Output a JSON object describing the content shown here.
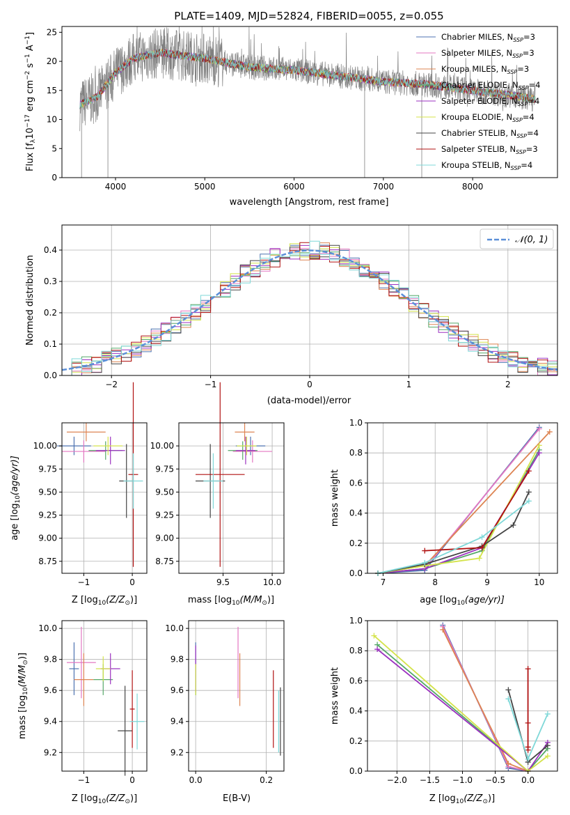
{
  "chart_data": [
    {
      "type": "line",
      "title": "PLATE=1409, MJD=52824, FIBERID=0055, z=0.055",
      "xlabel": "wavelength [Angstrom, rest frame]",
      "ylabel_main": "Flux [f",
      "ylabel_sub": "λ",
      "ylabel_rest": "10",
      "ylabel_units": " erg cm",
      "ylabel_s": " s",
      "ylabel_a": " A",
      "ylabel_exp17": "−17",
      "ylabel_exp2": "−2",
      "ylabel_exp1": "−1",
      "xlim": [
        3400,
        8950
      ],
      "ylim": [
        0,
        26
      ],
      "xticks": [
        4000,
        5000,
        6000,
        7000,
        8000
      ],
      "yticks": [
        0,
        5,
        10,
        15,
        20,
        25
      ],
      "legend": [
        {
          "prefix": "Chabrier MILES, N",
          "sub": "SSP",
          "suffix": "=3",
          "color": "#4c72b0"
        },
        {
          "prefix": "Salpeter MILES, N",
          "sub": "SSP",
          "suffix": "=3",
          "color": "#e377c2"
        },
        {
          "prefix": "Kroupa MILES, N",
          "sub": "SSP",
          "suffix": "=3",
          "color": "#dd8452"
        },
        {
          "prefix": "Chabrier ELODIE, N",
          "sub": "SSP",
          "suffix": "=4",
          "color": "#55a868"
        },
        {
          "prefix": "Salpeter ELODIE, N",
          "sub": "SSP",
          "suffix": "=4",
          "color": "#9b30c0"
        },
        {
          "prefix": "Kroupa ELODIE, N",
          "sub": "SSP",
          "suffix": "=4",
          "color": "#d4e34a"
        },
        {
          "prefix": "Chabrier STELIB, N",
          "sub": "SSP",
          "suffix": "=4",
          "color": "#444444"
        },
        {
          "prefix": "Salpeter STELIB, N",
          "sub": "SSP",
          "suffix": "=3",
          "color": "#b01010"
        },
        {
          "prefix": "Kroupa STELIB, N",
          "sub": "SSP",
          "suffix": "=4",
          "color": "#7fd8d8"
        }
      ],
      "data_trend": [
        [
          3600,
          12.5
        ],
        [
          3800,
          14
        ],
        [
          4000,
          18
        ],
        [
          4200,
          20.5
        ],
        [
          4500,
          21.5
        ],
        [
          5000,
          20.5
        ],
        [
          5500,
          19
        ],
        [
          6000,
          18.5
        ],
        [
          6500,
          17.5
        ],
        [
          7000,
          16.5
        ],
        [
          7500,
          16
        ],
        [
          8000,
          15
        ],
        [
          8500,
          14
        ],
        [
          8700,
          13.5
        ]
      ]
    },
    {
      "type": "bar",
      "xlabel": "(data-model)/error",
      "ylabel": "Normed distribution",
      "xlim": [
        -2.5,
        2.5
      ],
      "ylim": [
        0,
        0.48
      ],
      "xticks": [
        -2,
        -1,
        0,
        1,
        2
      ],
      "yticks": [
        0.0,
        0.1,
        0.2,
        0.3,
        0.4
      ],
      "legend_label": "𝒩(0, 1)",
      "curve": "normal(0,1)"
    },
    {
      "type": "scatter",
      "xlabel_main": "Z [log",
      "xlabel_sub": "10",
      "xlabel_rest": "(Z/Z",
      "xlabel_sun": "⊙",
      "xlabel_end": ")]",
      "ylabel_main": "age  [log",
      "ylabel_sub": "10",
      "ylabel_rest": "(age/yr)]",
      "xlim": [
        -1.45,
        0.3
      ],
      "ylim": [
        8.62,
        10.25
      ],
      "xticks": [
        -1,
        0
      ],
      "yticks": [
        8.75,
        9.0,
        9.25,
        9.5,
        9.75,
        10.0
      ],
      "points": [
        {
          "x": -1.2,
          "y": 10.0,
          "xerr": 0.35,
          "yerr": 0.1
        },
        {
          "x": -1.0,
          "y": 9.94,
          "xerr": 0.45,
          "yerr": 0.12
        },
        {
          "x": -0.95,
          "y": 10.15,
          "xerr": 0.4,
          "yerr": 0.1
        },
        {
          "x": -0.55,
          "y": 9.95,
          "xerr": 0.35,
          "yerr": 0.1
        },
        {
          "x": -0.45,
          "y": 9.95,
          "xerr": 0.3,
          "yerr": 0.15
        },
        {
          "x": -0.5,
          "y": 10.0,
          "xerr": 0.3,
          "yerr": 0.1
        },
        {
          "x": -0.12,
          "y": 9.62,
          "xerr": 0.15,
          "yerr": 0.4
        },
        {
          "x": 0.02,
          "y": 9.69,
          "xerr": 0.1,
          "yerr": 1.0
        },
        {
          "x": 0.02,
          "y": 9.62,
          "xerr": 0.2,
          "yerr": 0.3
        }
      ]
    },
    {
      "type": "scatter",
      "xlabel_main": "mass [log",
      "xlabel_sub": "10",
      "xlabel_rest": "(M/M",
      "xlabel_sun": "⊙",
      "xlabel_end": ")]",
      "xlim": [
        9.05,
        10.12
      ],
      "ylim": [
        8.62,
        10.25
      ],
      "xticks": [
        9.5,
        10.0
      ],
      "yticks": [
        8.75,
        9.0,
        9.25,
        9.5,
        9.75,
        10.0
      ],
      "points": [
        {
          "x": 9.78,
          "y": 10.0,
          "xerr": 0.15,
          "yerr": 0.1
        },
        {
          "x": 9.8,
          "y": 9.94,
          "xerr": 0.2,
          "yerr": 0.12
        },
        {
          "x": 9.72,
          "y": 10.15,
          "xerr": 0.1,
          "yerr": 0.1
        },
        {
          "x": 9.7,
          "y": 9.95,
          "xerr": 0.15,
          "yerr": 0.1
        },
        {
          "x": 9.73,
          "y": 9.95,
          "xerr": 0.1,
          "yerr": 0.15
        },
        {
          "x": 9.74,
          "y": 10.0,
          "xerr": 0.1,
          "yerr": 0.1
        },
        {
          "x": 9.37,
          "y": 9.62,
          "xerr": 0.15,
          "yerr": 0.4
        },
        {
          "x": 9.47,
          "y": 9.69,
          "xerr": 0.25,
          "yerr": 1.0
        },
        {
          "x": 9.4,
          "y": 9.62,
          "xerr": 0.1,
          "yerr": 0.3
        }
      ]
    },
    {
      "type": "line",
      "xlabel_main": "age  [log",
      "xlabel_sub": "10",
      "xlabel_rest": "(age/yr)]",
      "ylabel": "mass weight",
      "xlim": [
        6.7,
        10.35
      ],
      "ylim": [
        0,
        1.0
      ],
      "xticks": [
        7,
        8,
        9,
        10
      ],
      "yticks": [
        0.0,
        0.2,
        0.4,
        0.6,
        0.8,
        1.0
      ],
      "series": [
        {
          "color": "#4c72b0",
          "x": [
            6.9,
            7.8,
            10.0
          ],
          "y": [
            0.0,
            0.02,
            0.97
          ]
        },
        {
          "color": "#e377c2",
          "x": [
            6.9,
            7.8,
            10.0
          ],
          "y": [
            0.0,
            0.03,
            0.96
          ]
        },
        {
          "color": "#dd8452",
          "x": [
            6.9,
            7.8,
            10.2
          ],
          "y": [
            0.0,
            0.05,
            0.94
          ]
        },
        {
          "color": "#55a868",
          "x": [
            6.9,
            7.8,
            8.9,
            10.0
          ],
          "y": [
            0.0,
            0.03,
            0.15,
            0.82
          ]
        },
        {
          "color": "#9b30c0",
          "x": [
            6.9,
            7.8,
            8.9,
            10.0
          ],
          "y": [
            0.0,
            0.03,
            0.17,
            0.8
          ]
        },
        {
          "color": "#d4e34a",
          "x": [
            6.9,
            7.8,
            8.85,
            10.0
          ],
          "y": [
            0.0,
            0.05,
            0.1,
            0.85
          ]
        },
        {
          "color": "#444444",
          "x": [
            6.9,
            7.8,
            8.9,
            9.5,
            9.8
          ],
          "y": [
            0.0,
            0.06,
            0.18,
            0.32,
            0.54
          ]
        },
        {
          "color": "#b01010",
          "x": [
            7.8,
            8.9,
            9.8
          ],
          "y": [
            0.15,
            0.17,
            0.68
          ]
        },
        {
          "color": "#7fd8d8",
          "x": [
            6.9,
            7.8,
            8.9,
            9.8
          ],
          "y": [
            0.0,
            0.07,
            0.24,
            0.48
          ]
        }
      ]
    },
    {
      "type": "scatter",
      "xlabel_main": "Z [log",
      "xlabel_sub": "10",
      "xlabel_rest": "(Z/Z",
      "xlabel_sun": "⊙",
      "xlabel_end": ")]",
      "ylabel_main": "mass [log",
      "ylabel_sub": "10",
      "ylabel_rest": "(M/M",
      "ylabel_sun": "⊙",
      "ylabel_end": ")]",
      "xlim": [
        -1.45,
        0.3
      ],
      "ylim": [
        9.08,
        10.05
      ],
      "xticks": [
        -1,
        0
      ],
      "yticks": [
        9.2,
        9.4,
        9.6,
        9.8,
        10.0
      ],
      "points": [
        {
          "x": -1.2,
          "y": 9.74,
          "xerr": 0.1,
          "yerr": 0.17
        },
        {
          "x": -1.05,
          "y": 9.78,
          "xerr": 0.3,
          "yerr": 0.23
        },
        {
          "x": -1.0,
          "y": 9.67,
          "xerr": 0.2,
          "yerr": 0.17
        },
        {
          "x": -0.6,
          "y": 9.67,
          "xerr": 0.2,
          "yerr": 0.1
        },
        {
          "x": -0.45,
          "y": 9.74,
          "xerr": 0.2,
          "yerr": 0.1
        },
        {
          "x": -0.6,
          "y": 9.74,
          "xerr": 0.15,
          "yerr": 0.08
        },
        {
          "x": -0.15,
          "y": 9.34,
          "xerr": 0.15,
          "yerr": 0.29
        },
        {
          "x": 0.0,
          "y": 9.48,
          "xerr": 0.05,
          "yerr": 0.25
        },
        {
          "x": 0.1,
          "y": 9.4,
          "xerr": 0.15,
          "yerr": 0.18
        }
      ]
    },
    {
      "type": "scatter",
      "xlabel": "E(B-V)",
      "xlim": [
        -0.02,
        0.25
      ],
      "ylim": [
        9.08,
        10.05
      ],
      "xticks": [
        0.0,
        0.2
      ],
      "yticks": [
        9.2,
        9.4,
        9.6,
        9.8,
        10.0
      ],
      "points": [
        {
          "x": 0.0,
          "y": 9.74,
          "yerr": 0.17
        },
        {
          "x": 0.12,
          "y": 9.78,
          "yerr": 0.23
        },
        {
          "x": 0.125,
          "y": 9.67,
          "yerr": 0.17
        },
        {
          "x": 0.0,
          "y": 9.67,
          "yerr": 0.1
        },
        {
          "x": 0.0,
          "y": 9.74,
          "yerr": 0.15
        },
        {
          "x": 0.0,
          "y": 9.67,
          "yerr": 0.1
        },
        {
          "x": 0.24,
          "y": 9.4,
          "yerr": 0.22
        },
        {
          "x": 0.22,
          "y": 9.48,
          "yerr": 0.25
        },
        {
          "x": 0.235,
          "y": 9.4,
          "yerr": 0.2
        }
      ]
    },
    {
      "type": "line",
      "xlabel_main": "Z [log",
      "xlabel_sub": "10",
      "xlabel_rest": "(Z/Z",
      "xlabel_sun": "⊙",
      "xlabel_end": ")]",
      "ylabel": "mass weight",
      "xlim": [
        -2.45,
        0.45
      ],
      "ylim": [
        0,
        1.0
      ],
      "xticks": [
        -2.0,
        -1.5,
        -1.0,
        -0.5,
        0.0
      ],
      "yticks": [
        0.0,
        0.2,
        0.4,
        0.6,
        0.8,
        1.0
      ],
      "series": [
        {
          "color": "#4c72b0",
          "x": [
            -1.3,
            -0.3,
            0.0
          ],
          "y": [
            0.97,
            0.02,
            0.0
          ]
        },
        {
          "color": "#e377c2",
          "x": [
            -1.3,
            -0.3,
            0.0
          ],
          "y": [
            0.96,
            0.03,
            0.0
          ]
        },
        {
          "color": "#dd8452",
          "x": [
            -1.3,
            -0.3,
            0.0
          ],
          "y": [
            0.94,
            0.05,
            0.0
          ]
        },
        {
          "color": "#55a868",
          "x": [
            -2.3,
            0.0,
            0.3
          ],
          "y": [
            0.84,
            0.0,
            0.15
          ]
        },
        {
          "color": "#9b30c0",
          "x": [
            -2.3,
            0.0,
            0.3
          ],
          "y": [
            0.81,
            0.0,
            0.19
          ]
        },
        {
          "color": "#d4e34a",
          "x": [
            -2.35,
            0.0,
            0.3
          ],
          "y": [
            0.9,
            0.0,
            0.1
          ]
        },
        {
          "color": "#444444",
          "x": [
            -0.3,
            0.0,
            0.3
          ],
          "y": [
            0.54,
            0.06,
            0.17
          ]
        },
        {
          "color": "#b01010",
          "x": [
            0.0,
            0.0,
            0.0,
            0.0
          ],
          "y": [
            0.68,
            0.32,
            0.16,
            0.14
          ]
        },
        {
          "color": "#7fd8d8",
          "x": [
            -0.3,
            0.0,
            0.3
          ],
          "y": [
            0.48,
            0.08,
            0.38
          ]
        }
      ]
    }
  ]
}
